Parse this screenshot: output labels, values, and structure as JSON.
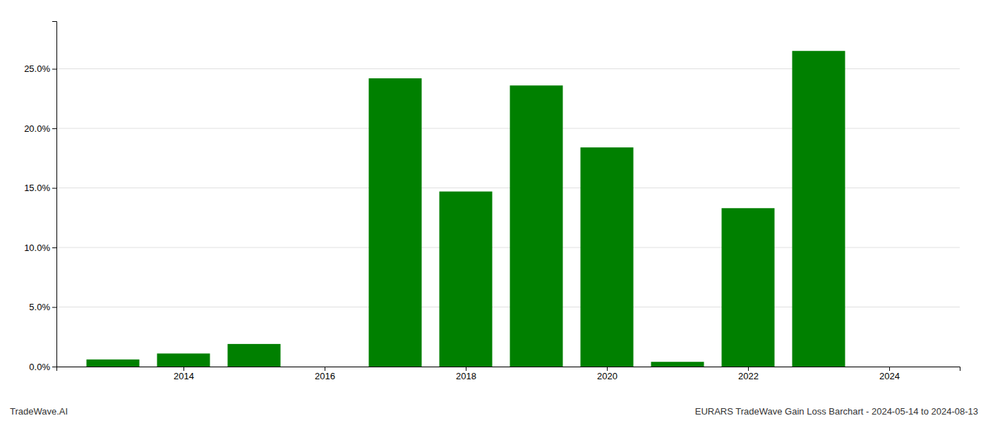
{
  "chart_data": {
    "type": "bar",
    "x": [
      2013,
      2014,
      2015,
      2017,
      2018,
      2019,
      2020,
      2021,
      2022,
      2023
    ],
    "values": [
      0.006,
      0.011,
      0.019,
      0.242,
      0.147,
      0.236,
      0.184,
      0.004,
      0.133,
      0.265
    ],
    "color": "#008000",
    "xlim": [
      2012.2,
      2025.0
    ],
    "xticks": [
      2014,
      2016,
      2018,
      2020,
      2022,
      2024
    ],
    "ylim": [
      0.0,
      0.29
    ],
    "yticks": [
      {
        "value": 0.0,
        "label": "0.0%"
      },
      {
        "value": 0.05,
        "label": "5.0%"
      },
      {
        "value": 0.1,
        "label": "10.0%"
      },
      {
        "value": 0.15,
        "label": "15.0%"
      },
      {
        "value": 0.2,
        "label": "20.0%"
      },
      {
        "value": 0.25,
        "label": "25.0%"
      }
    ],
    "grid": true,
    "annotations": [
      "TradeWave.AI",
      "EURARS TradeWave Gain Loss Barchart - 2024-05-14 to 2024-08-13"
    ]
  }
}
